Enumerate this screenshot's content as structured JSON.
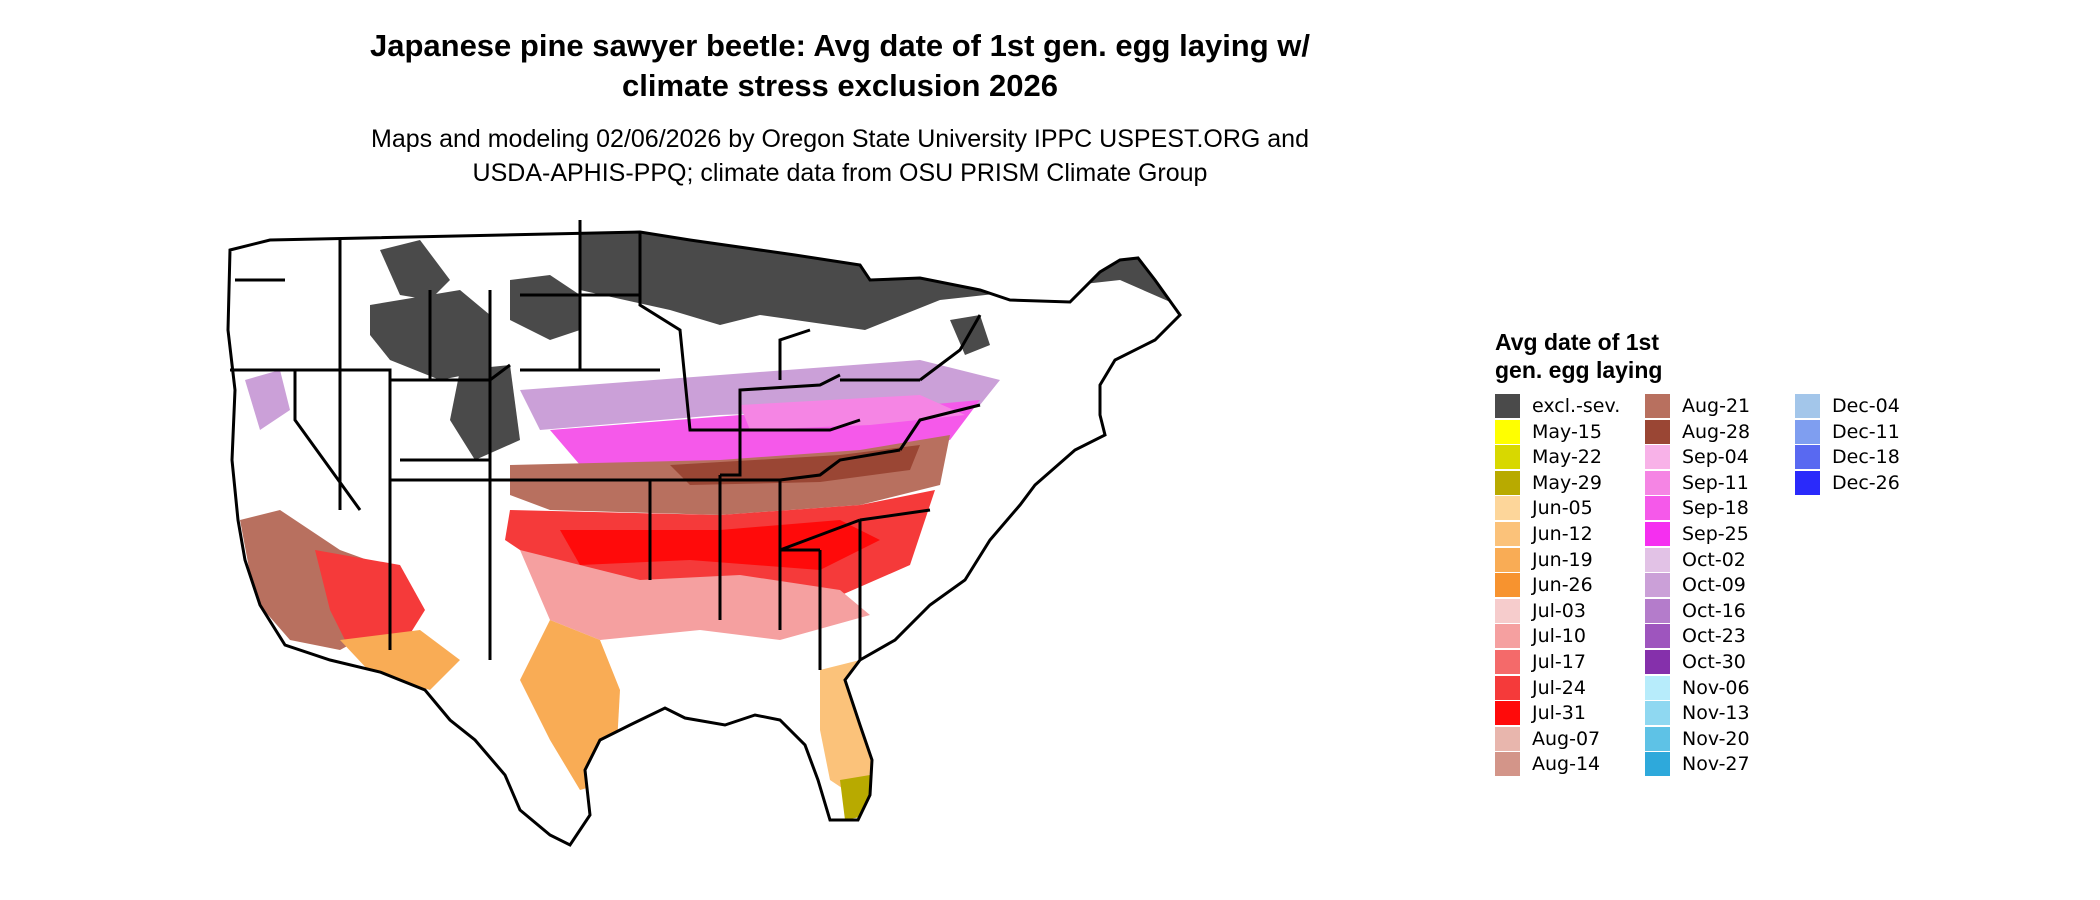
{
  "title_line1": "Japanese pine sawyer beetle: Avg date of 1st gen. egg laying w/",
  "title_line2": "climate stress exclusion 2026",
  "subtitle_line1": "Maps and modeling 02/06/2026 by Oregon State University IPPC USPEST.ORG and",
  "subtitle_line2": "USDA-APHIS-PPQ; climate data from OSU PRISM Climate Group",
  "legend": {
    "title_line1": "Avg date of 1st",
    "title_line2": "gen. egg laying",
    "items": [
      {
        "label": "excl.-sev.",
        "color": "#4a4a4a"
      },
      {
        "label": "May-15",
        "color": "#ffff00"
      },
      {
        "label": "May-22",
        "color": "#d8d800"
      },
      {
        "label": "May-29",
        "color": "#b8aa00"
      },
      {
        "label": "Jun-05",
        "color": "#fdd69a"
      },
      {
        "label": "Jun-12",
        "color": "#fbc27a"
      },
      {
        "label": "Jun-19",
        "color": "#f9ac55"
      },
      {
        "label": "Jun-26",
        "color": "#f7932f"
      },
      {
        "label": "Jul-03",
        "color": "#f6cccc"
      },
      {
        "label": "Jul-10",
        "color": "#f5a0a0"
      },
      {
        "label": "Jul-17",
        "color": "#f46a6a"
      },
      {
        "label": "Jul-24",
        "color": "#f53a3a"
      },
      {
        "label": "Jul-31",
        "color": "#ff0a0a"
      },
      {
        "label": "Aug-07",
        "color": "#e8b6ad"
      },
      {
        "label": "Aug-14",
        "color": "#d39589"
      },
      {
        "label": "Aug-21",
        "color": "#b8705f"
      },
      {
        "label": "Aug-28",
        "color": "#9a4634"
      },
      {
        "label": "Sep-04",
        "color": "#f8b2e8"
      },
      {
        "label": "Sep-11",
        "color": "#f585e4"
      },
      {
        "label": "Sep-18",
        "color": "#f559ea"
      },
      {
        "label": "Sep-25",
        "color": "#f52ff0"
      },
      {
        "label": "Oct-02",
        "color": "#e2c2e6"
      },
      {
        "label": "Oct-09",
        "color": "#cba0d8"
      },
      {
        "label": "Oct-16",
        "color": "#b47ccb"
      },
      {
        "label": "Oct-23",
        "color": "#9e55be"
      },
      {
        "label": "Oct-30",
        "color": "#8530ab"
      },
      {
        "label": "Nov-06",
        "color": "#b7ecfb"
      },
      {
        "label": "Nov-13",
        "color": "#8fd8f1"
      },
      {
        "label": "Nov-20",
        "color": "#5ec2e6"
      },
      {
        "label": "Nov-27",
        "color": "#2ea9db"
      },
      {
        "label": "Dec-04",
        "color": "#a3c6ea"
      },
      {
        "label": "Dec-11",
        "color": "#7f9ef0"
      },
      {
        "label": "Dec-18",
        "color": "#5969f1"
      },
      {
        "label": "Dec-26",
        "color": "#2a2afb"
      }
    ]
  }
}
